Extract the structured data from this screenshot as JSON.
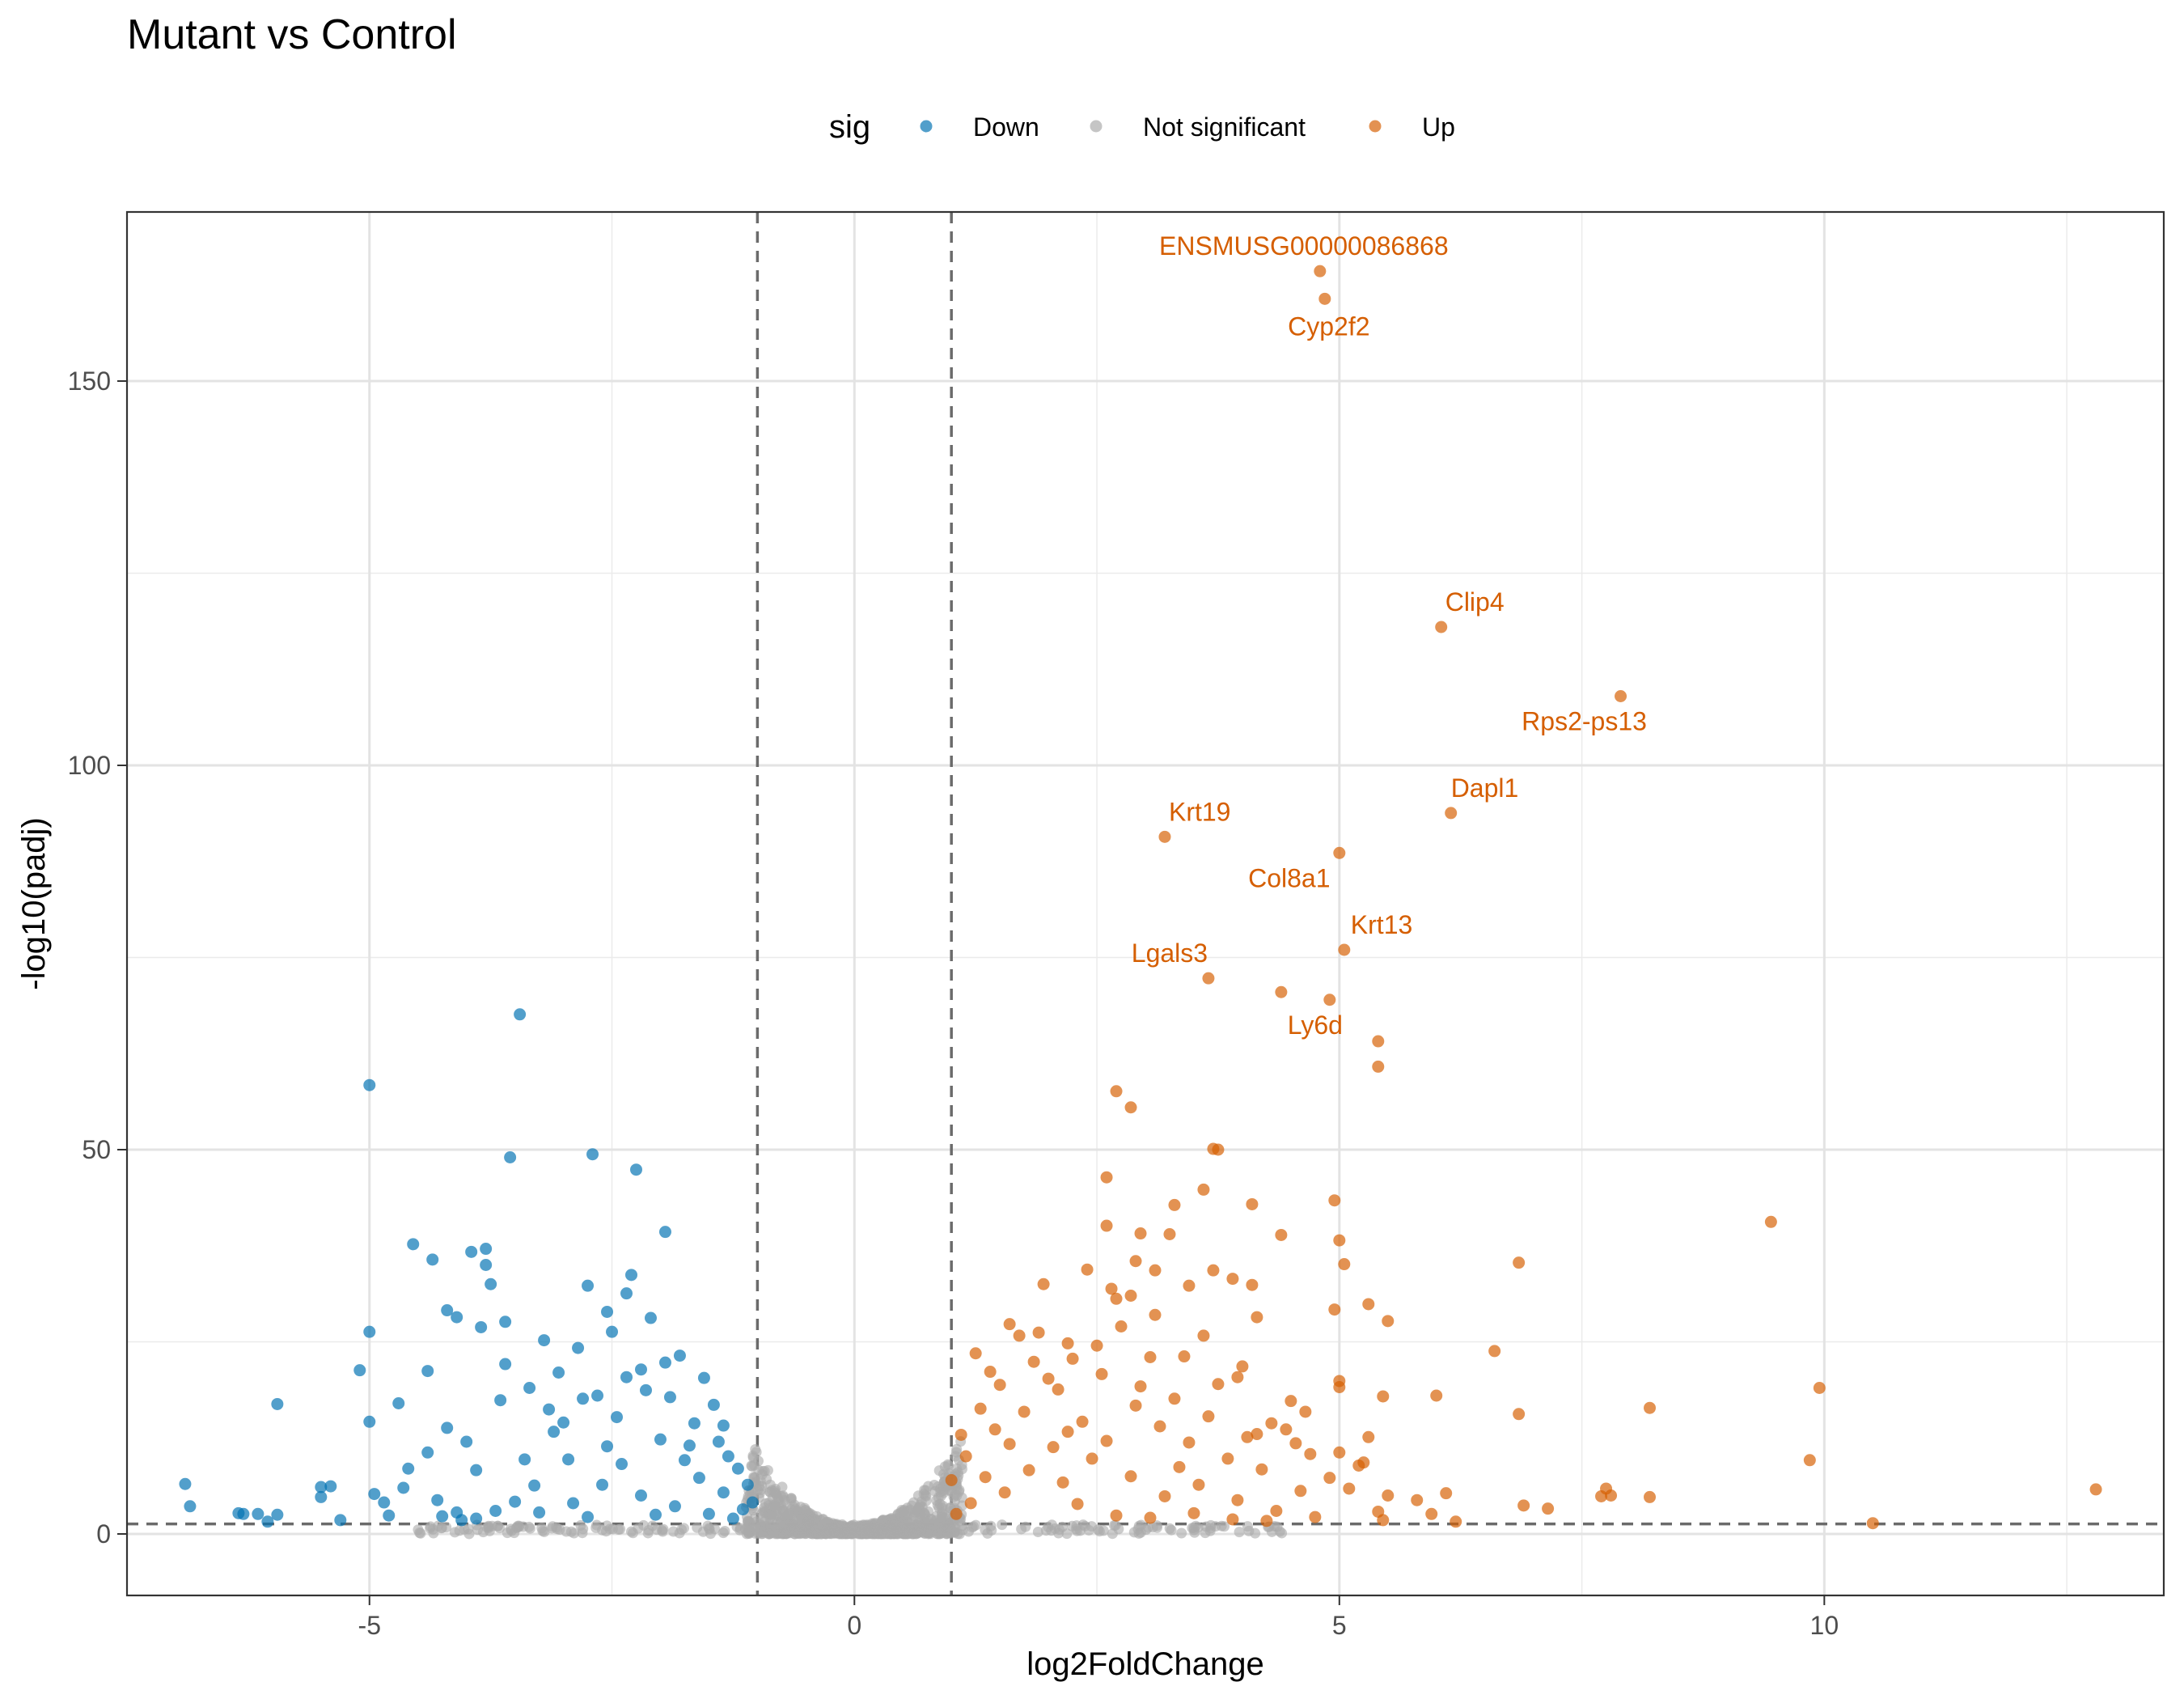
{
  "chart_data": {
    "type": "scatter",
    "title": "Mutant vs Control",
    "xlabel": "log2FoldChange",
    "ylabel": "-log10(padj)",
    "xlim": [
      -7.5,
      13.5
    ],
    "ylim": [
      -8,
      172
    ],
    "x_ticks": [
      -5,
      0,
      5,
      10
    ],
    "y_ticks": [
      0,
      50,
      100,
      150
    ],
    "x_tick_labels": [
      "-5",
      "0",
      "5",
      "10"
    ],
    "y_tick_labels": [
      "0",
      "50",
      "100",
      "150"
    ],
    "grid": true,
    "legend": {
      "title": "sig",
      "position": "top",
      "items": [
        {
          "label": "Down",
          "color": "#0072B2"
        },
        {
          "label": "Not significant",
          "color": "#AAAAAA"
        },
        {
          "label": "Up",
          "color": "#D55E00"
        }
      ]
    },
    "reference_lines": {
      "vertical": [
        -1,
        1
      ],
      "horizontal": [
        1.3
      ]
    },
    "series": [
      {
        "name": "Down",
        "color": "#0072B2",
        "points": [
          [
            -3.45,
            67.6
          ],
          [
            -5.0,
            58.4
          ],
          [
            -3.55,
            49.0
          ],
          [
            -2.7,
            49.4
          ],
          [
            -2.25,
            47.4
          ],
          [
            -1.95,
            39.3
          ],
          [
            -4.55,
            37.7
          ],
          [
            -3.8,
            37.1
          ],
          [
            -3.95,
            36.7
          ],
          [
            -4.35,
            35.7
          ],
          [
            -3.8,
            35.0
          ],
          [
            -2.3,
            33.7
          ],
          [
            -3.75,
            32.5
          ],
          [
            -2.75,
            32.3
          ],
          [
            -2.35,
            31.3
          ],
          [
            -4.2,
            29.1
          ],
          [
            -2.55,
            28.9
          ],
          [
            -2.1,
            28.1
          ],
          [
            -4.1,
            28.2
          ],
          [
            -3.6,
            27.6
          ],
          [
            -3.85,
            26.9
          ],
          [
            -5.0,
            26.3
          ],
          [
            -3.2,
            25.2
          ],
          [
            -2.5,
            26.3
          ],
          [
            -1.8,
            23.2
          ],
          [
            -5.1,
            21.3
          ],
          [
            -4.4,
            21.2
          ],
          [
            -3.6,
            22.1
          ],
          [
            -5.95,
            16.9
          ],
          [
            -4.7,
            17.0
          ],
          [
            -5.0,
            14.6
          ],
          [
            -4.2,
            13.8
          ],
          [
            -4.0,
            12.0
          ],
          [
            -4.4,
            10.6
          ],
          [
            -4.6,
            8.5
          ],
          [
            -3.9,
            8.3
          ],
          [
            -4.65,
            6.0
          ],
          [
            -4.85,
            4.1
          ],
          [
            -5.5,
            6.1
          ],
          [
            -5.4,
            6.2
          ],
          [
            -5.5,
            4.8
          ],
          [
            -4.95,
            5.2
          ],
          [
            -6.9,
            6.5
          ],
          [
            -6.85,
            3.6
          ],
          [
            -6.35,
            2.7
          ],
          [
            -6.3,
            2.6
          ],
          [
            -6.15,
            2.6
          ],
          [
            -6.05,
            1.6
          ],
          [
            -5.95,
            2.5
          ],
          [
            -5.3,
            1.8
          ],
          [
            -4.8,
            2.4
          ],
          [
            -4.25,
            2.3
          ],
          [
            -4.05,
            1.8
          ],
          [
            -4.1,
            2.8
          ],
          [
            -3.4,
            9.7
          ],
          [
            -3.0,
            14.5
          ],
          [
            -2.65,
            18.0
          ],
          [
            -2.35,
            20.4
          ],
          [
            -2.2,
            21.4
          ],
          [
            -1.9,
            17.8
          ],
          [
            -1.65,
            14.4
          ],
          [
            -1.4,
            12.0
          ],
          [
            -1.3,
            10.1
          ],
          [
            -1.2,
            8.5
          ],
          [
            -1.1,
            6.4
          ],
          [
            -1.05,
            4.1
          ],
          [
            -1.15,
            3.2
          ],
          [
            -1.35,
            5.4
          ],
          [
            -1.6,
            7.3
          ],
          [
            -1.75,
            9.6
          ],
          [
            -2.0,
            12.3
          ],
          [
            -2.45,
            15.2
          ],
          [
            -2.8,
            17.6
          ],
          [
            -3.1,
            13.3
          ],
          [
            -3.3,
            6.3
          ],
          [
            -3.5,
            4.2
          ],
          [
            -3.7,
            3.0
          ],
          [
            -2.9,
            4.0
          ],
          [
            -2.6,
            6.4
          ],
          [
            -2.2,
            5.0
          ],
          [
            -1.85,
            3.6
          ],
          [
            -1.5,
            2.6
          ],
          [
            -1.25,
            2.0
          ],
          [
            -2.05,
            2.5
          ],
          [
            -2.75,
            2.2
          ],
          [
            -3.25,
            2.8
          ],
          [
            -3.9,
            2.0
          ],
          [
            -2.4,
            9.1
          ],
          [
            -1.7,
            11.5
          ],
          [
            -1.45,
            16.8
          ],
          [
            -2.15,
            18.7
          ],
          [
            -3.05,
            21.0
          ],
          [
            -3.35,
            19.0
          ],
          [
            -3.65,
            17.4
          ],
          [
            -4.3,
            4.4
          ],
          [
            -2.95,
            9.7
          ],
          [
            -1.55,
            20.3
          ],
          [
            -1.95,
            22.3
          ],
          [
            -2.85,
            24.2
          ],
          [
            -3.15,
            16.2
          ],
          [
            -2.55,
            11.4
          ],
          [
            -1.35,
            14.1
          ]
        ]
      },
      {
        "name": "Up",
        "color": "#D55E00",
        "points": [
          [
            4.8,
            164.3
          ],
          [
            4.85,
            160.7
          ],
          [
            6.05,
            118.0
          ],
          [
            7.9,
            109.0
          ],
          [
            6.15,
            93.8
          ],
          [
            3.2,
            90.7
          ],
          [
            5.0,
            88.6
          ],
          [
            5.05,
            76.0
          ],
          [
            3.65,
            72.3
          ],
          [
            4.4,
            70.5
          ],
          [
            4.9,
            69.5
          ],
          [
            5.4,
            64.1
          ],
          [
            5.4,
            60.8
          ],
          [
            2.7,
            57.6
          ],
          [
            2.85,
            55.5
          ],
          [
            3.7,
            50.1
          ],
          [
            3.75,
            50.0
          ],
          [
            2.6,
            46.4
          ],
          [
            3.6,
            44.8
          ],
          [
            3.3,
            42.8
          ],
          [
            4.1,
            42.9
          ],
          [
            4.95,
            43.4
          ],
          [
            9.45,
            40.6
          ],
          [
            2.6,
            40.1
          ],
          [
            3.25,
            39.0
          ],
          [
            2.95,
            39.1
          ],
          [
            4.4,
            38.9
          ],
          [
            5.0,
            38.2
          ],
          [
            5.05,
            35.1
          ],
          [
            2.9,
            35.5
          ],
          [
            3.1,
            34.3
          ],
          [
            2.4,
            34.4
          ],
          [
            3.7,
            34.3
          ],
          [
            6.85,
            35.3
          ],
          [
            3.9,
            33.2
          ],
          [
            4.1,
            32.4
          ],
          [
            3.45,
            32.3
          ],
          [
            2.85,
            31.0
          ],
          [
            2.65,
            31.9
          ],
          [
            2.7,
            30.6
          ],
          [
            5.3,
            29.9
          ],
          [
            4.95,
            29.2
          ],
          [
            3.1,
            28.5
          ],
          [
            4.15,
            28.2
          ],
          [
            5.5,
            27.7
          ],
          [
            1.95,
            32.5
          ],
          [
            1.7,
            25.8
          ],
          [
            2.2,
            24.8
          ],
          [
            2.5,
            24.5
          ],
          [
            3.05,
            23.0
          ],
          [
            3.4,
            23.1
          ],
          [
            6.6,
            23.8
          ],
          [
            4.0,
            21.8
          ],
          [
            3.75,
            19.5
          ],
          [
            3.95,
            20.4
          ],
          [
            4.5,
            17.3
          ],
          [
            5.0,
            19.9
          ],
          [
            5.0,
            19.1
          ],
          [
            5.45,
            17.9
          ],
          [
            6.0,
            18.0
          ],
          [
            9.95,
            19.0
          ],
          [
            8.2,
            16.4
          ],
          [
            6.85,
            15.6
          ],
          [
            4.3,
            14.4
          ],
          [
            4.45,
            13.6
          ],
          [
            4.15,
            13.0
          ],
          [
            4.55,
            11.8
          ],
          [
            4.7,
            10.4
          ],
          [
            5.0,
            10.6
          ],
          [
            5.25,
            9.3
          ],
          [
            5.2,
            8.9
          ],
          [
            4.9,
            7.3
          ],
          [
            5.1,
            5.9
          ],
          [
            5.5,
            5.0
          ],
          [
            5.8,
            4.4
          ],
          [
            6.1,
            5.3
          ],
          [
            5.95,
            2.6
          ],
          [
            5.4,
            2.9
          ],
          [
            6.2,
            1.6
          ],
          [
            5.45,
            1.8
          ],
          [
            6.9,
            3.7
          ],
          [
            7.15,
            3.3
          ],
          [
            7.75,
            5.9
          ],
          [
            7.7,
            4.9
          ],
          [
            7.8,
            5.0
          ],
          [
            8.2,
            4.8
          ],
          [
            9.85,
            9.6
          ],
          [
            10.5,
            1.4
          ],
          [
            12.8,
            5.8
          ],
          [
            1.1,
            12.9
          ],
          [
            1.3,
            16.3
          ],
          [
            1.5,
            19.4
          ],
          [
            1.85,
            22.4
          ],
          [
            2.1,
            18.8
          ],
          [
            2.35,
            14.6
          ],
          [
            2.6,
            12.1
          ],
          [
            2.9,
            16.7
          ],
          [
            3.15,
            14.0
          ],
          [
            3.45,
            11.9
          ],
          [
            3.85,
            9.8
          ],
          [
            4.2,
            8.4
          ],
          [
            4.6,
            5.6
          ],
          [
            4.35,
            3.0
          ],
          [
            3.95,
            4.4
          ],
          [
            3.55,
            6.4
          ],
          [
            3.2,
            4.9
          ],
          [
            2.85,
            7.5
          ],
          [
            2.45,
            9.8
          ],
          [
            2.15,
            6.7
          ],
          [
            1.8,
            8.3
          ],
          [
            1.55,
            5.4
          ],
          [
            1.35,
            7.4
          ],
          [
            1.2,
            4.0
          ],
          [
            1.05,
            2.6
          ],
          [
            1.15,
            10.1
          ],
          [
            1.45,
            13.6
          ],
          [
            1.75,
            15.9
          ],
          [
            2.05,
            11.3
          ],
          [
            2.3,
            3.9
          ],
          [
            2.7,
            2.4
          ],
          [
            3.05,
            2.1
          ],
          [
            3.5,
            2.7
          ],
          [
            3.9,
            1.9
          ],
          [
            4.25,
            1.7
          ],
          [
            4.75,
            2.2
          ],
          [
            1.6,
            27.3
          ],
          [
            1.9,
            26.2
          ],
          [
            2.25,
            22.8
          ],
          [
            2.55,
            20.8
          ],
          [
            2.95,
            19.2
          ],
          [
            3.3,
            17.6
          ],
          [
            3.65,
            15.3
          ],
          [
            4.05,
            12.6
          ],
          [
            1.25,
            23.5
          ],
          [
            1.4,
            21.1
          ],
          [
            2.0,
            20.2
          ],
          [
            2.75,
            27.0
          ],
          [
            3.6,
            25.8
          ],
          [
            4.65,
            15.9
          ],
          [
            5.3,
            12.6
          ],
          [
            1.0,
            7.0
          ],
          [
            1.6,
            11.7
          ],
          [
            2.2,
            13.3
          ],
          [
            3.35,
            8.7
          ]
        ]
      }
    ],
    "labels": [
      {
        "text": "ENSMUSG00000086868",
        "x": 4.8,
        "y": 164.3
      },
      {
        "text": "Cyp2f2",
        "x": 4.85,
        "y": 160.7
      },
      {
        "text": "Clip4",
        "x": 6.05,
        "y": 118.0
      },
      {
        "text": "Rps2-ps13",
        "x": 7.9,
        "y": 109.0
      },
      {
        "text": "Dapl1",
        "x": 6.15,
        "y": 93.8
      },
      {
        "text": "Krt19",
        "x": 3.2,
        "y": 90.7
      },
      {
        "text": "Col8a1",
        "x": 5.0,
        "y": 88.6
      },
      {
        "text": "Krt13",
        "x": 5.05,
        "y": 76.0
      },
      {
        "text": "Lgals3",
        "x": 3.65,
        "y": 72.3
      },
      {
        "text": "Ly6d",
        "x": 4.9,
        "y": 69.5
      }
    ]
  }
}
